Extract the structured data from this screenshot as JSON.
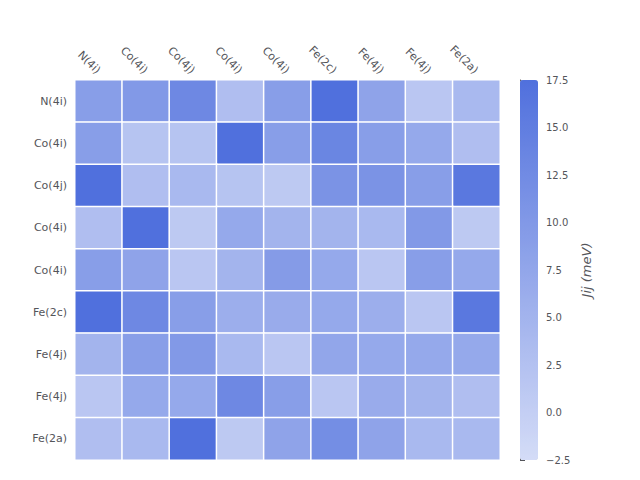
{
  "chart_data": {
    "type": "heatmap",
    "categories": [
      "N(4i)",
      "Co(4i)",
      "Co(4j)",
      "Co(4i)",
      "Co(4i)",
      "Fe(2c)",
      "Fe(4j)",
      "Fe(4j)",
      "Fe(2a)"
    ],
    "matrix": [
      [
        9.0,
        10.0,
        13.0,
        3.0,
        9.0,
        17.5,
        8.0,
        1.5,
        4.0
      ],
      [
        9.0,
        2.0,
        2.0,
        17.5,
        9.0,
        13.5,
        9.0,
        7.0,
        3.0
      ],
      [
        17.5,
        3.0,
        4.0,
        2.0,
        1.0,
        11.0,
        11.0,
        9.0,
        16.0
      ],
      [
        3.0,
        17.5,
        1.0,
        7.0,
        5.0,
        5.0,
        4.0,
        10.0,
        1.0
      ],
      [
        9.0,
        8.0,
        1.5,
        5.0,
        9.5,
        7.0,
        1.5,
        9.0,
        7.0
      ],
      [
        17.5,
        13.0,
        9.0,
        6.0,
        6.5,
        7.0,
        6.0,
        1.5,
        16.0
      ],
      [
        5.0,
        9.0,
        10.0,
        4.0,
        1.5,
        7.5,
        7.0,
        7.0,
        7.0
      ],
      [
        1.5,
        7.0,
        7.0,
        13.0,
        9.0,
        1.5,
        6.5,
        5.0,
        3.0
      ],
      [
        3.0,
        4.0,
        17.5,
        1.0,
        8.0,
        12.0,
        8.0,
        4.0,
        4.0
      ]
    ],
    "colorbar_label": "Jij (meV)",
    "colorbar_range": [
      -2.5,
      17.5
    ],
    "colorbar_ticks": [
      {
        "value": -2.5,
        "label": "−2.5"
      },
      {
        "value": 0.0,
        "label": "0.0"
      },
      {
        "value": 2.5,
        "label": "2.5"
      },
      {
        "value": 5.0,
        "label": "5.0"
      },
      {
        "value": 7.5,
        "label": "7.5"
      },
      {
        "value": 10.0,
        "label": "10.0"
      },
      {
        "value": 12.5,
        "label": "12.5"
      },
      {
        "value": 15.0,
        "label": "15.0"
      },
      {
        "value": 17.5,
        "label": "17.5"
      }
    ],
    "grid": false
  }
}
